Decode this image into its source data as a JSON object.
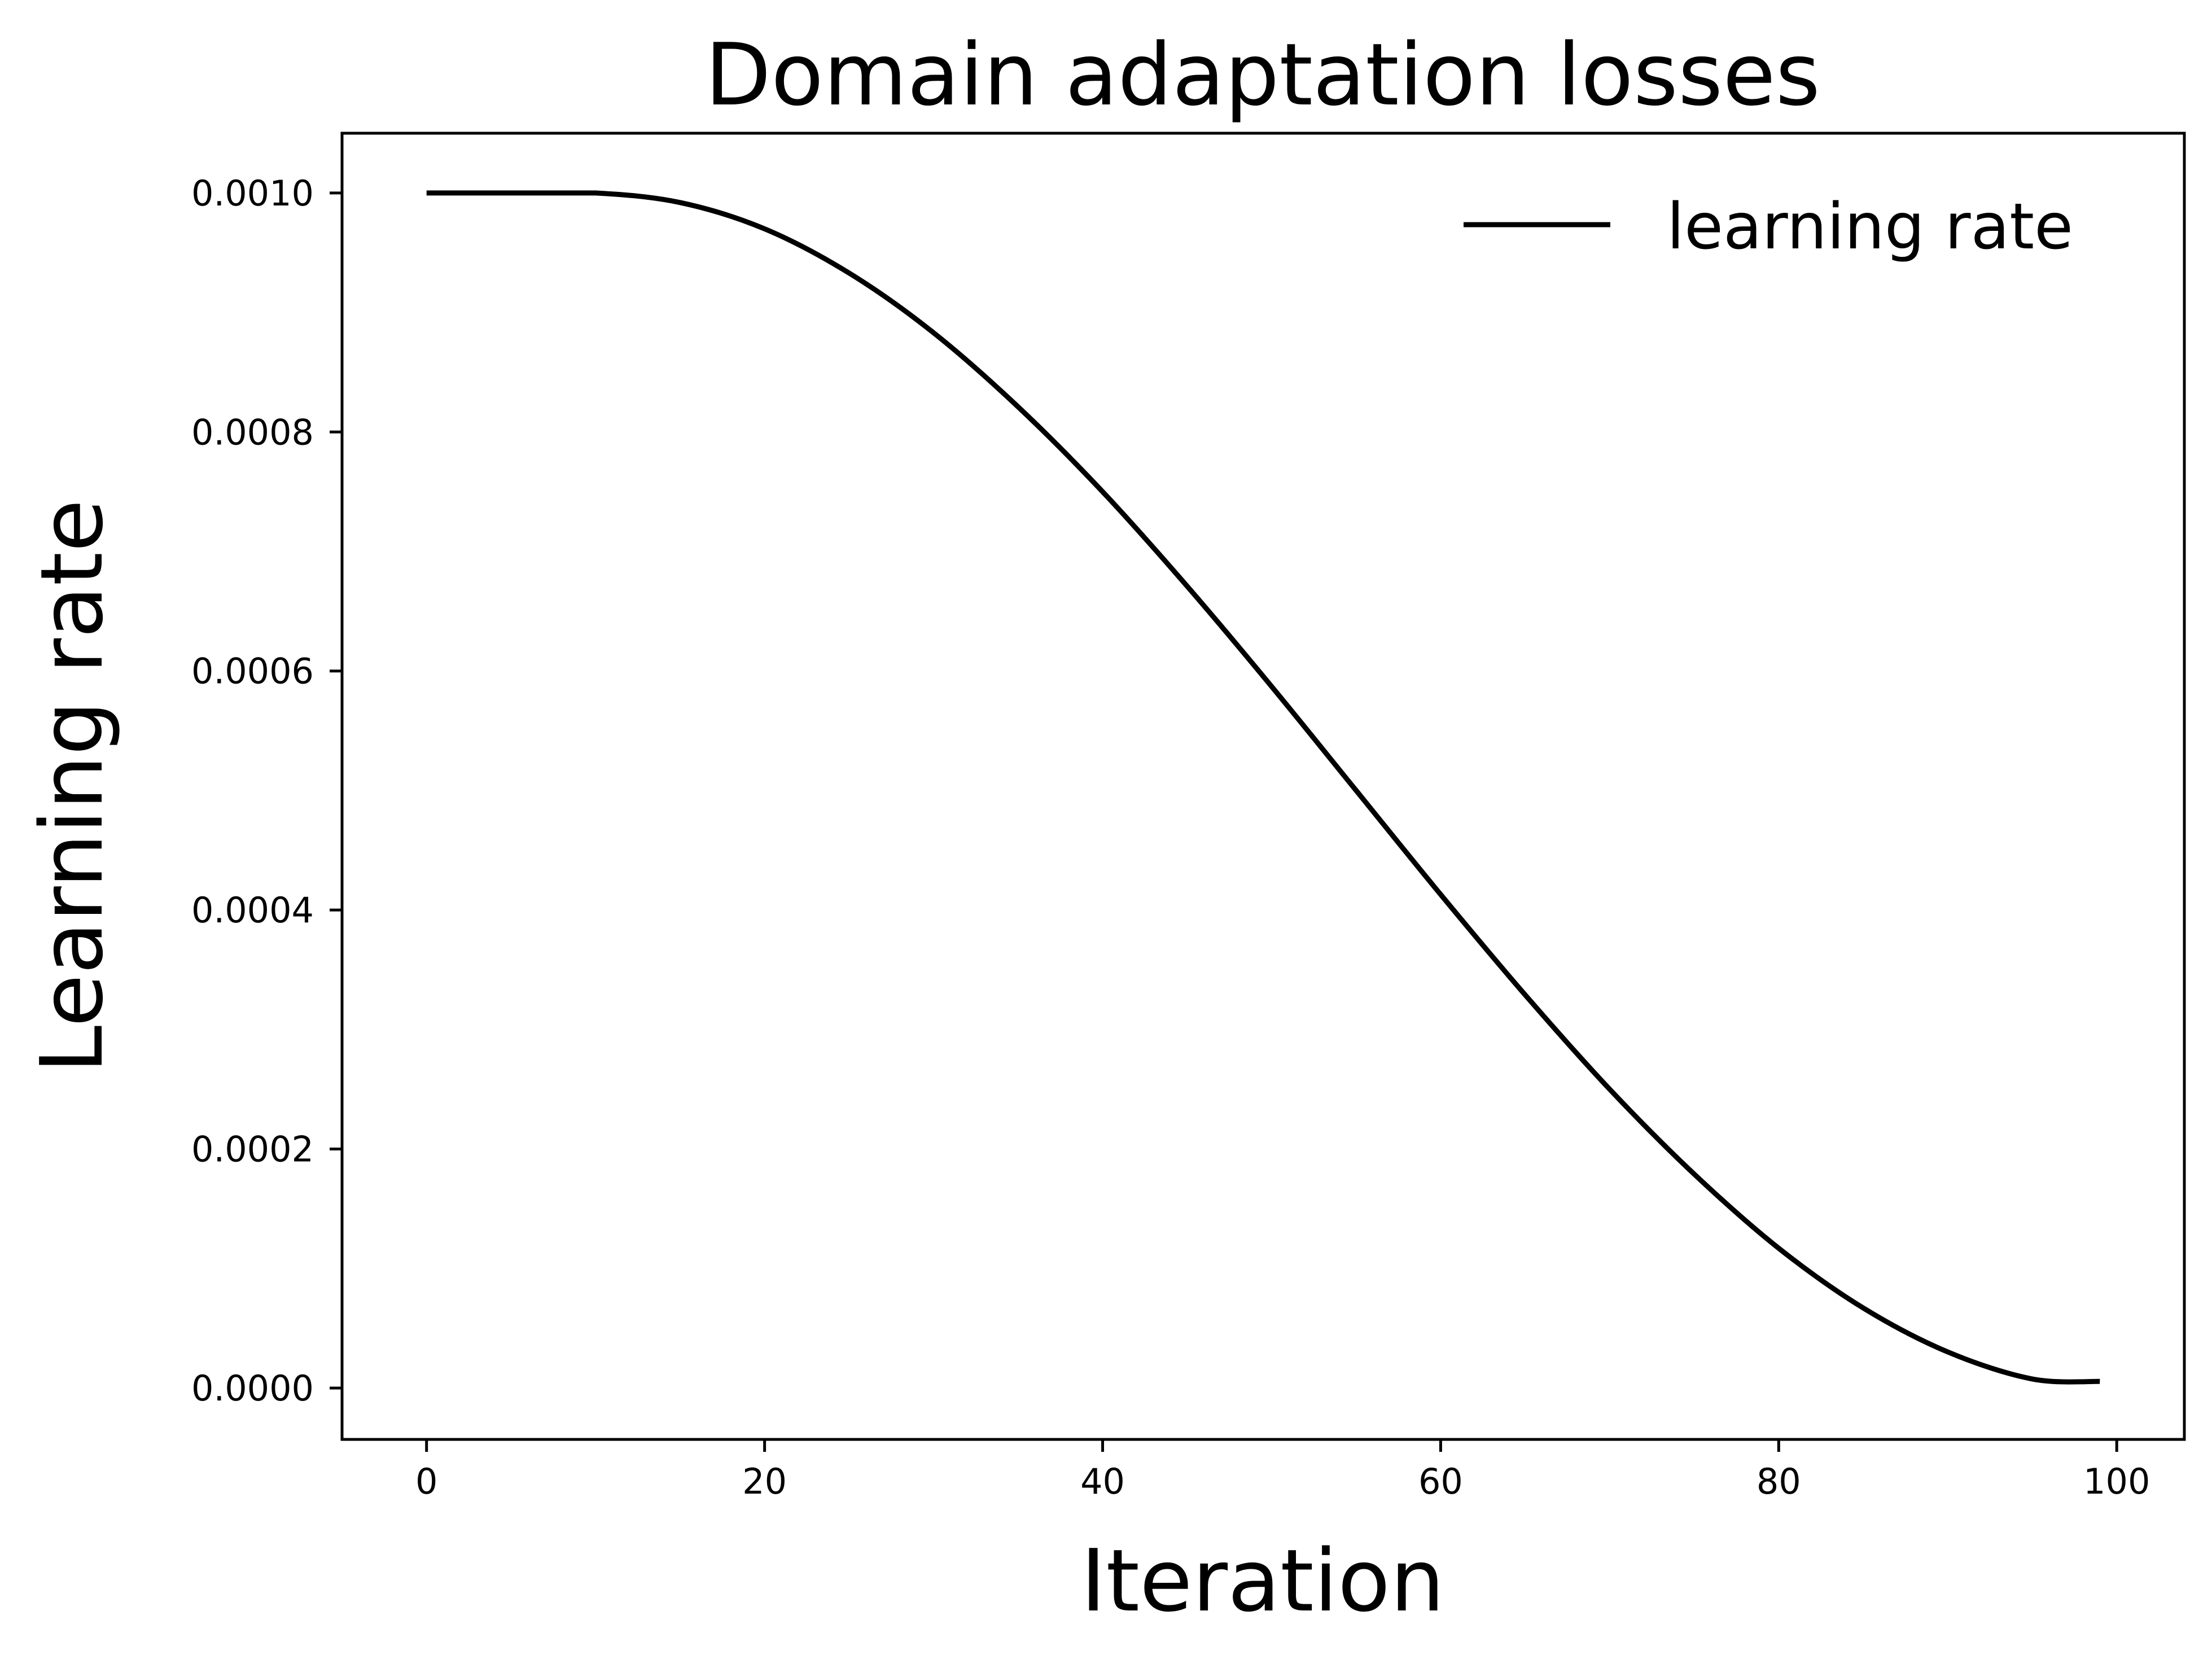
{
  "chart_data": {
    "type": "line",
    "title": "Domain adaptation losses",
    "xlabel": "Iteration",
    "ylabel": "Learning rate",
    "xlim": [
      -5,
      104
    ],
    "ylim": [
      -4.3e-05,
      0.00105
    ],
    "x_ticks": [
      0,
      20,
      40,
      60,
      80,
      100
    ],
    "x_tick_labels": [
      "0",
      "20",
      "40",
      "60",
      "80",
      "100"
    ],
    "y_ticks": [
      0.0,
      0.0002,
      0.0004,
      0.0006,
      0.0008,
      0.001
    ],
    "y_tick_labels": [
      "0.0000",
      "0.0002",
      "0.0004",
      "0.0006",
      "0.0008",
      "0.0010"
    ],
    "grid": false,
    "legend_position": "top-right",
    "legend_frame": false,
    "series": [
      {
        "name": "learning rate",
        "color": "#000000",
        "x": [
          0,
          5,
          10,
          15,
          20,
          25,
          30,
          35,
          40,
          45,
          50,
          55,
          60,
          65,
          70,
          75,
          80,
          85,
          90,
          95,
          99
        ],
        "y": [
          0.001,
          0.001,
          0.001,
          0.000992,
          0.00097,
          0.000933,
          0.000883,
          0.000821,
          0.00075,
          0.000671,
          0.000587,
          0.0005,
          0.000413,
          0.000329,
          0.00025,
          0.000179,
          0.000117,
          6.7e-05,
          3.02e-05,
          7.6e-06,
          5.5e-06
        ]
      }
    ]
  }
}
